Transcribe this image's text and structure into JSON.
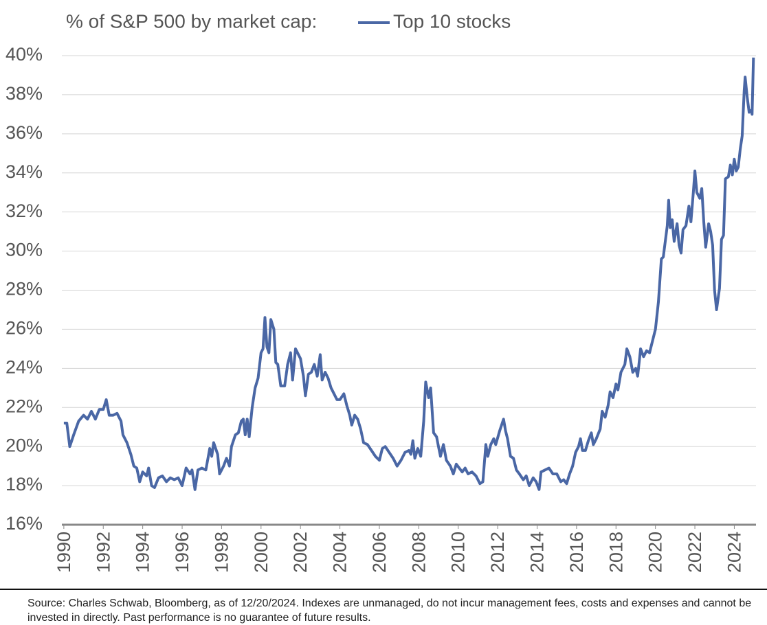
{
  "chart_data": {
    "type": "line",
    "title": "% of S&P 500 by market cap:",
    "x": [
      1990.0,
      1990.15,
      1990.3,
      1990.5,
      1990.75,
      1991.0,
      1991.2,
      1991.4,
      1991.6,
      1991.8,
      1992.0,
      1992.15,
      1992.3,
      1992.5,
      1992.7,
      1992.9,
      1993.0,
      1993.2,
      1993.4,
      1993.55,
      1993.7,
      1993.85,
      1994.0,
      1994.2,
      1994.3,
      1994.45,
      1994.6,
      1994.8,
      1995.0,
      1995.2,
      1995.4,
      1995.6,
      1995.8,
      1996.0,
      1996.2,
      1996.4,
      1996.5,
      1996.65,
      1996.8,
      1997.0,
      1997.2,
      1997.4,
      1997.5,
      1997.6,
      1997.8,
      1997.9,
      1998.1,
      1998.25,
      1998.4,
      1998.5,
      1998.7,
      1998.85,
      1999.0,
      1999.1,
      1999.2,
      1999.3,
      1999.4,
      1999.55,
      1999.7,
      1999.85,
      2000.0,
      2000.1,
      2000.2,
      2000.3,
      2000.4,
      2000.5,
      2000.65,
      2000.75,
      2000.85,
      2001.0,
      2001.2,
      2001.35,
      2001.5,
      2001.6,
      2001.75,
      2001.9,
      2002.0,
      2002.15,
      2002.25,
      2002.4,
      2002.55,
      2002.7,
      2002.85,
      2003.0,
      2003.1,
      2003.25,
      2003.4,
      2003.55,
      2003.7,
      2003.85,
      2004.0,
      2004.2,
      2004.35,
      2004.5,
      2004.6,
      2004.75,
      2004.9,
      2005.05,
      2005.2,
      2005.4,
      2005.6,
      2005.8,
      2006.0,
      2006.15,
      2006.3,
      2006.5,
      2006.7,
      2006.9,
      2007.1,
      2007.3,
      2007.5,
      2007.6,
      2007.7,
      2007.8,
      2007.95,
      2008.1,
      2008.25,
      2008.35,
      2008.5,
      2008.6,
      2008.75,
      2008.9,
      2009.0,
      2009.1,
      2009.25,
      2009.4,
      2009.6,
      2009.75,
      2009.9,
      2010.05,
      2010.2,
      2010.35,
      2010.5,
      2010.7,
      2010.9,
      2011.1,
      2011.25,
      2011.4,
      2011.5,
      2011.65,
      2011.8,
      2011.9,
      2012.1,
      2012.3,
      2012.4,
      2012.5,
      2012.65,
      2012.8,
      2012.95,
      2013.1,
      2013.3,
      2013.45,
      2013.6,
      2013.8,
      2013.95,
      2014.1,
      2014.2,
      2014.4,
      2014.6,
      2014.8,
      2015.0,
      2015.2,
      2015.35,
      2015.5,
      2015.65,
      2015.8,
      2015.95,
      2016.1,
      2016.2,
      2016.3,
      2016.45,
      2016.6,
      2016.75,
      2016.85,
      2017.0,
      2017.2,
      2017.3,
      2017.45,
      2017.6,
      2017.7,
      2017.85,
      2018.0,
      2018.1,
      2018.25,
      2018.45,
      2018.55,
      2018.7,
      2018.85,
      2019.0,
      2019.1,
      2019.25,
      2019.4,
      2019.55,
      2019.7,
      2019.85,
      2020.0,
      2020.15,
      2020.3,
      2020.4,
      2020.5,
      2020.6,
      2020.67,
      2020.75,
      2020.85,
      2020.95,
      2021.1,
      2021.2,
      2021.3,
      2021.4,
      2021.55,
      2021.7,
      2021.8,
      2021.92,
      2022.0,
      2022.1,
      2022.25,
      2022.35,
      2022.45,
      2022.55,
      2022.7,
      2022.8,
      2022.9,
      2023.0,
      2023.1,
      2023.25,
      2023.35,
      2023.45,
      2023.55,
      2023.7,
      2023.8,
      2023.9,
      2024.0,
      2024.1,
      2024.2,
      2024.3,
      2024.4,
      2024.5,
      2024.55,
      2024.65,
      2024.75,
      2024.85,
      2024.9,
      2024.97
    ],
    "series": [
      {
        "name": "Top 10 stocks",
        "color": "#4a67a5",
        "values": [
          21.2,
          21.2,
          20.0,
          20.6,
          21.3,
          21.6,
          21.4,
          21.8,
          21.4,
          21.9,
          21.9,
          22.4,
          21.6,
          21.6,
          21.7,
          21.3,
          20.6,
          20.2,
          19.6,
          19.0,
          18.9,
          18.2,
          18.7,
          18.5,
          18.9,
          18.0,
          17.9,
          18.4,
          18.5,
          18.2,
          18.4,
          18.3,
          18.4,
          18.0,
          18.9,
          18.6,
          18.8,
          17.8,
          18.8,
          18.9,
          18.8,
          19.9,
          19.5,
          20.2,
          19.6,
          18.6,
          19.0,
          19.4,
          19.0,
          20.0,
          20.6,
          20.7,
          21.3,
          21.4,
          20.6,
          21.4,
          20.5,
          22.0,
          23.0,
          23.5,
          24.8,
          25.0,
          26.6,
          25.1,
          24.8,
          26.5,
          26.0,
          24.3,
          24.2,
          23.1,
          23.1,
          24.2,
          24.8,
          23.4,
          25.0,
          24.7,
          24.5,
          23.6,
          22.6,
          23.7,
          23.8,
          24.2,
          23.6,
          24.7,
          23.4,
          23.8,
          23.5,
          23.0,
          22.7,
          22.4,
          22.4,
          22.7,
          22.1,
          21.6,
          21.1,
          21.6,
          21.4,
          20.9,
          20.2,
          20.1,
          19.8,
          19.5,
          19.3,
          19.9,
          20.0,
          19.7,
          19.4,
          19.0,
          19.3,
          19.7,
          19.8,
          19.6,
          20.3,
          19.4,
          19.9,
          19.5,
          21.3,
          23.3,
          22.5,
          23.0,
          20.7,
          20.5,
          20.0,
          19.5,
          20.1,
          19.3,
          19.0,
          18.6,
          19.1,
          18.9,
          18.7,
          18.9,
          18.6,
          18.7,
          18.5,
          18.1,
          18.2,
          20.1,
          19.5,
          20.1,
          20.4,
          20.1,
          20.8,
          21.4,
          20.8,
          20.4,
          19.5,
          19.4,
          18.8,
          18.6,
          18.3,
          18.5,
          18.0,
          18.4,
          18.2,
          17.8,
          18.7,
          18.8,
          18.9,
          18.6,
          18.6,
          18.2,
          18.3,
          18.1,
          18.6,
          19.0,
          19.7,
          20.0,
          20.4,
          19.8,
          19.8,
          20.3,
          20.7,
          20.1,
          20.4,
          20.9,
          21.8,
          21.5,
          22.1,
          22.8,
          22.5,
          23.2,
          22.9,
          23.8,
          24.2,
          25.0,
          24.6,
          23.8,
          24.0,
          23.6,
          25.0,
          24.6,
          24.9,
          24.8,
          25.4,
          26.0,
          27.4,
          29.6,
          29.7,
          30.5,
          31.3,
          32.6,
          31.2,
          31.6,
          30.5,
          31.4,
          30.3,
          29.9,
          31.1,
          31.3,
          32.3,
          31.5,
          33.0,
          34.1,
          33.0,
          32.7,
          33.2,
          31.5,
          30.2,
          31.4,
          31.0,
          30.3,
          28.0,
          27.0,
          28.1,
          30.6,
          30.8,
          33.7,
          33.8,
          34.4,
          33.9,
          34.7,
          34.1,
          34.3,
          35.2,
          35.9,
          38.2,
          38.9,
          37.9,
          37.1,
          37.2,
          37.0,
          39.9
        ]
      }
    ],
    "xlim": [
      1989.9,
      2025.1
    ],
    "xticks": [
      1990,
      1992,
      1994,
      1996,
      1998,
      2000,
      2002,
      2004,
      2006,
      2008,
      2010,
      2012,
      2014,
      2016,
      2018,
      2020,
      2022,
      2024
    ],
    "ylim": [
      16,
      40
    ],
    "yticks": [
      {
        "value": 16,
        "label": "16%"
      },
      {
        "value": 18,
        "label": "18%"
      },
      {
        "value": 20,
        "label": "20%"
      },
      {
        "value": 22,
        "label": "22%"
      },
      {
        "value": 24,
        "label": "24%"
      },
      {
        "value": 26,
        "label": "26%"
      },
      {
        "value": 28,
        "label": "28%"
      },
      {
        "value": 30,
        "label": "30%"
      },
      {
        "value": 32,
        "label": "32%"
      },
      {
        "value": 34,
        "label": "34%"
      },
      {
        "value": 36,
        "label": "36%"
      },
      {
        "value": 38,
        "label": "38%"
      },
      {
        "value": 40,
        "label": "40%"
      }
    ],
    "grid": true,
    "source": "Source: Charles Schwab, Bloomberg, as of 12/20/2024. Indexes are unmanaged, do not incur management fees, costs and expenses and cannot be invested in directly. Past performance is no guarantee of future results."
  }
}
